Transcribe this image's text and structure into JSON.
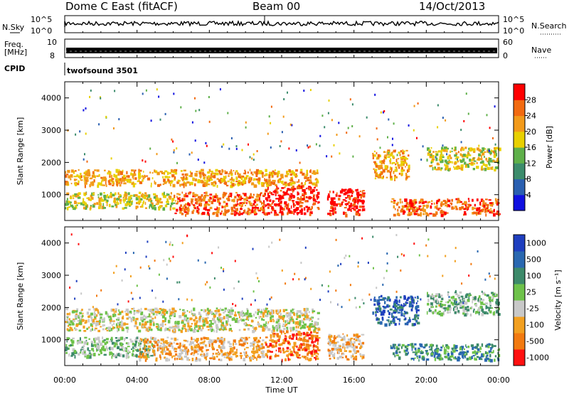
{
  "header": {
    "station": "Dome C East (fitACF)",
    "beam": "Beam 00",
    "date": "14/Oct/2013"
  },
  "top_panels": {
    "nsky_label": "N.Sky",
    "nsky_ticks": [
      "10^5",
      "10^0"
    ],
    "nsearch_label": "N.Search",
    "nsearch_ticks": [
      "10^5",
      "10^0"
    ],
    "freq_label": "Freq.",
    "freq_unit": "[MHz]",
    "freq_ticks": [
      "10",
      "8"
    ],
    "nave_label": "Nave",
    "nave_ticks": [
      "60",
      "0"
    ],
    "cpid_label": "CPID",
    "cpid_value": "twofsound 3501"
  },
  "chart_data": [
    {
      "type": "heatmap",
      "name": "power",
      "ylabel": "Slant Range [km]",
      "ylim": [
        200,
        4500
      ],
      "yticks": [
        1000,
        2000,
        3000,
        4000
      ],
      "colorbar_label": "Power [dB]",
      "colorbar_ticks": [
        4,
        8,
        12,
        16,
        20,
        24,
        28
      ],
      "colorbar_colors": [
        "#1010e0",
        "#2a5fb0",
        "#3c8c6c",
        "#5fb04a",
        "#e8d000",
        "#f29a1a",
        "#f26a10",
        "#ff0000"
      ],
      "bands": [
        {
          "t0": 0.0,
          "t1": 14.0,
          "r0": 1300,
          "r1": 1800,
          "level": 5
        },
        {
          "t0": 0.0,
          "t1": 6.0,
          "r0": 600,
          "r1": 1100,
          "level": 4
        },
        {
          "t0": 6.0,
          "t1": 11.0,
          "r0": 400,
          "r1": 1100,
          "level": 6
        },
        {
          "t0": 11.0,
          "t1": 14.0,
          "r0": 400,
          "r1": 1300,
          "level": 7
        },
        {
          "t0": 14.5,
          "t1": 16.5,
          "r0": 400,
          "r1": 1200,
          "level": 7
        },
        {
          "t0": 17.0,
          "t1": 19.0,
          "r0": 1500,
          "r1": 2400,
          "level": 5
        },
        {
          "t0": 18.0,
          "t1": 24.0,
          "r0": 400,
          "r1": 900,
          "level": 6
        },
        {
          "t0": 20.0,
          "t1": 24.0,
          "r0": 1800,
          "r1": 2500,
          "level": 4
        }
      ]
    },
    {
      "type": "heatmap",
      "name": "velocity",
      "ylabel": "Slant Range [km]",
      "xlabel": "Time UT",
      "ylim": [
        200,
        4500
      ],
      "yticks": [
        1000,
        2000,
        3000,
        4000
      ],
      "xticks": [
        "00:00",
        "04:00",
        "08:00",
        "12:00",
        "16:00",
        "20:00",
        "00:00"
      ],
      "xrange_hours": [
        0,
        24
      ],
      "colorbar_label": "Velocity [m s⁻¹]",
      "colorbar_ticks": [
        "1000",
        "500",
        "100",
        "25",
        "-25",
        "-100",
        "-500",
        "-1000"
      ],
      "colorbar_colors": [
        "#1f3fbf",
        "#2a68b0",
        "#3d8a6a",
        "#6ec24a",
        "#c8c8c8",
        "#f2a020",
        "#f27a10",
        "#ff1010"
      ],
      "bands": [
        {
          "t0": 0.0,
          "t1": 14.0,
          "r0": 1300,
          "r1": 2000,
          "level": 4
        },
        {
          "t0": 0.0,
          "t1": 5.0,
          "r0": 500,
          "r1": 1100,
          "level": 3
        },
        {
          "t0": 4.0,
          "t1": 11.0,
          "r0": 400,
          "r1": 1100,
          "level": 5
        },
        {
          "t0": 11.0,
          "t1": 14.0,
          "r0": 400,
          "r1": 1300,
          "level": 6
        },
        {
          "t0": 14.5,
          "t1": 16.5,
          "r0": 400,
          "r1": 1200,
          "level": 5
        },
        {
          "t0": 17.0,
          "t1": 19.5,
          "r0": 1500,
          "r1": 2400,
          "level": 1
        },
        {
          "t0": 18.0,
          "t1": 24.0,
          "r0": 400,
          "r1": 900,
          "level": 2
        },
        {
          "t0": 20.0,
          "t1": 24.0,
          "r0": 1800,
          "r1": 2500,
          "level": 3
        }
      ]
    }
  ]
}
